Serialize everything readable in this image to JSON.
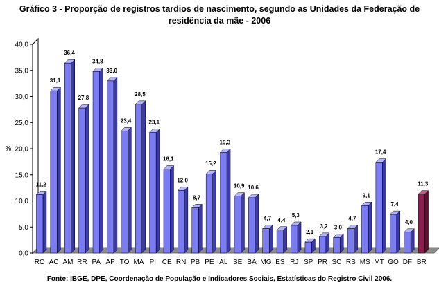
{
  "chart_data": {
    "type": "bar",
    "title": "Gráfico 3 - Proporção de registros tardios de nascimento, segundo as Unidades da Federação de",
    "title_line2": "residência da mãe - 2006",
    "ylabel": "%",
    "xlabel": "",
    "ylim": [
      0,
      40
    ],
    "yticks": [
      "0,0",
      "5,0",
      "10,0",
      "15,0",
      "20,0",
      "25,0",
      "30,0",
      "35,0",
      "40,0"
    ],
    "grid": false,
    "categories": [
      "RO",
      "AC",
      "AM",
      "RR",
      "PA",
      "AP",
      "TO",
      "MA",
      "PI",
      "CE",
      "RN",
      "PB",
      "PE",
      "AL",
      "SE",
      "BA",
      "MG",
      "ES",
      "RJ",
      "SP",
      "PR",
      "SC",
      "RS",
      "MS",
      "MT",
      "GO",
      "DF",
      "BR"
    ],
    "values": [
      11.2,
      31.1,
      36.4,
      27.8,
      34.8,
      33.0,
      23.4,
      28.5,
      23.1,
      16.1,
      12.0,
      8.7,
      15.2,
      19.3,
      10.9,
      10.6,
      4.7,
      4.4,
      5.3,
      2.1,
      3.2,
      3.0,
      4.7,
      9.1,
      17.4,
      7.4,
      4.0,
      11.3
    ],
    "data_labels": [
      "11,2",
      "31,1",
      "36,4",
      "27,8",
      "34,8",
      "33,0",
      "23,4",
      "28,5",
      "23,1",
      "16,1",
      "12,0",
      "8,7",
      "15,2",
      "19,3",
      "10,9",
      "10,6",
      "4,7",
      "4,4",
      "5,3",
      "2,1",
      "3,2",
      "3,0",
      "4,7",
      "9,1",
      "17,4",
      "7,4",
      "4,0",
      "11,3"
    ],
    "highlight_category": "BR",
    "colors": {
      "bar_front": "#7b7bf2",
      "bar_side": "#3a3aa8",
      "bar_top": "#b4b4ff",
      "highlight_front": "#8e1e4e",
      "highlight_side": "#5a0f30",
      "highlight_top": "#c0608a",
      "floor": "#8c8c8c",
      "axis": "#000000"
    }
  },
  "source": "Fonte: IBGE, DPE, Coordenação de População e Indicadores Sociais, Estatísticas do Registro Civil 2006."
}
